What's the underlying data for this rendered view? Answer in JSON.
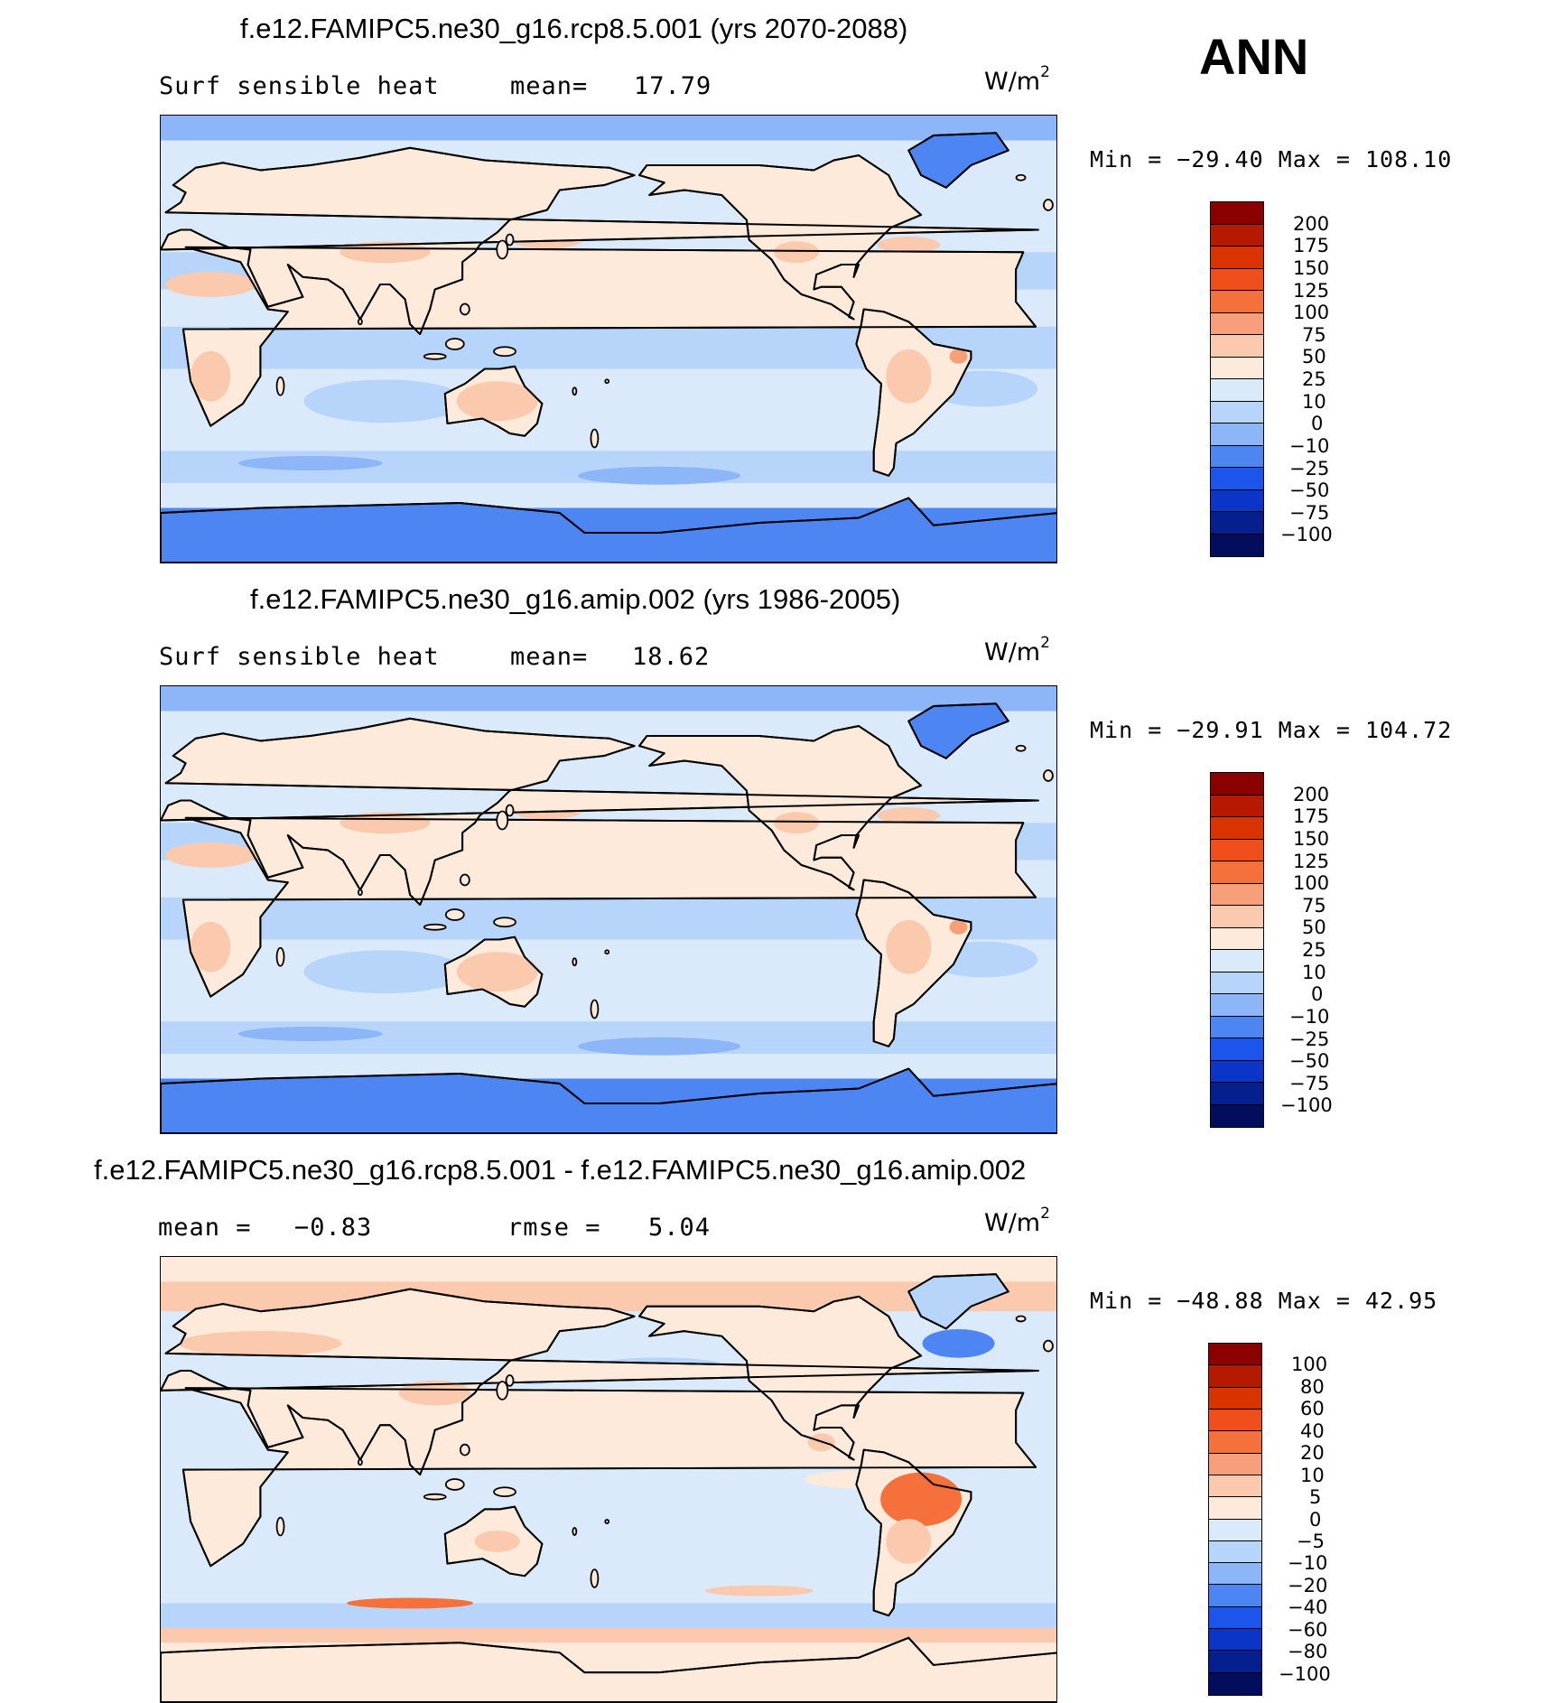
{
  "season": "ANN",
  "panels": [
    {
      "title": "f.e12.FAMIPC5.ne30_g16.rcp8.5.001 (yrs 2070-2088)",
      "left_label": "Surf  sensible  heat",
      "stat_label": "mean=",
      "stat_value": "17.79",
      "units": "W/m",
      "units_exp": "2",
      "minmax": "Min  =  −29.40  Max  =  108.10",
      "colorbar": {
        "labels": [
          "200",
          "175",
          "150",
          "125",
          "100",
          "75",
          "50",
          "25",
          "10",
          "0",
          "−10",
          "−25",
          "−50",
          "−75",
          "−100"
        ],
        "colors": [
          "#8b0000",
          "#b51a00",
          "#d93300",
          "#f04e1a",
          "#f5703b",
          "#f79f7a",
          "#fbc9ad",
          "#fdeadb",
          "#daeafa",
          "#b7d4fb",
          "#8db6f8",
          "#4d85f2",
          "#1c55ec",
          "#0a35c6",
          "#061f8f",
          "#020d5e"
        ]
      },
      "map_palette": {
        "ocean": "#daeafa",
        "ocean_low": "#b7d4fb",
        "ocean_lower": "#8db6f8",
        "ice": "#4d85f2",
        "land": "#fdeadb",
        "land_warm": "#fbc9ad",
        "land_hot": "#f79f7a"
      }
    },
    {
      "title": "f.e12.FAMIPC5.ne30_g16.amip.002 (yrs 1986-2005)",
      "left_label": "Surf  sensible  heat",
      "stat_label": "mean=",
      "stat_value": "18.62",
      "units": "W/m",
      "units_exp": "2",
      "minmax": "Min  =  −29.91  Max  =  104.72",
      "colorbar": {
        "labels": [
          "200",
          "175",
          "150",
          "125",
          "100",
          "75",
          "50",
          "25",
          "10",
          "0",
          "−10",
          "−25",
          "−50",
          "−75",
          "−100"
        ],
        "colors": [
          "#8b0000",
          "#b51a00",
          "#d93300",
          "#f04e1a",
          "#f5703b",
          "#f79f7a",
          "#fbc9ad",
          "#fdeadb",
          "#daeafa",
          "#b7d4fb",
          "#8db6f8",
          "#4d85f2",
          "#1c55ec",
          "#0a35c6",
          "#061f8f",
          "#020d5e"
        ]
      },
      "map_palette": {
        "ocean": "#daeafa",
        "ocean_low": "#b7d4fb",
        "ocean_lower": "#8db6f8",
        "ice": "#4d85f2",
        "land": "#fdeadb",
        "land_warm": "#fbc9ad",
        "land_hot": "#f79f7a"
      }
    },
    {
      "title": "f.e12.FAMIPC5.ne30_g16.rcp8.5.001 - f.e12.FAMIPC5.ne30_g16.amip.002",
      "left_label": "mean  =",
      "left_value": "−0.83",
      "stat_label": "rmse  =",
      "stat_value": "5.04",
      "units": "W/m",
      "units_exp": "2",
      "minmax": "Min  =  −48.88  Max  =   42.95",
      "colorbar": {
        "labels": [
          "100",
          "80",
          "60",
          "40",
          "20",
          "10",
          "5",
          "0",
          "−5",
          "−10",
          "−20",
          "−40",
          "−60",
          "−80",
          "−100"
        ],
        "colors": [
          "#8b0000",
          "#b51a00",
          "#d93300",
          "#f04e1a",
          "#f5703b",
          "#f79f7a",
          "#fbc9ad",
          "#fdeadb",
          "#daeafa",
          "#b7d4fb",
          "#8db6f8",
          "#4d85f2",
          "#1c55ec",
          "#0a35c6",
          "#061f8f",
          "#020d5e"
        ]
      },
      "map_palette": {
        "ocean": "#daeafa",
        "ocean_low": "#b7d4fb",
        "ocean_lower": "#8db6f8",
        "ice": "#fdeadb",
        "land": "#fdeadb",
        "land_warm": "#fbc9ad",
        "land_hot": "#f5703b"
      }
    }
  ]
}
